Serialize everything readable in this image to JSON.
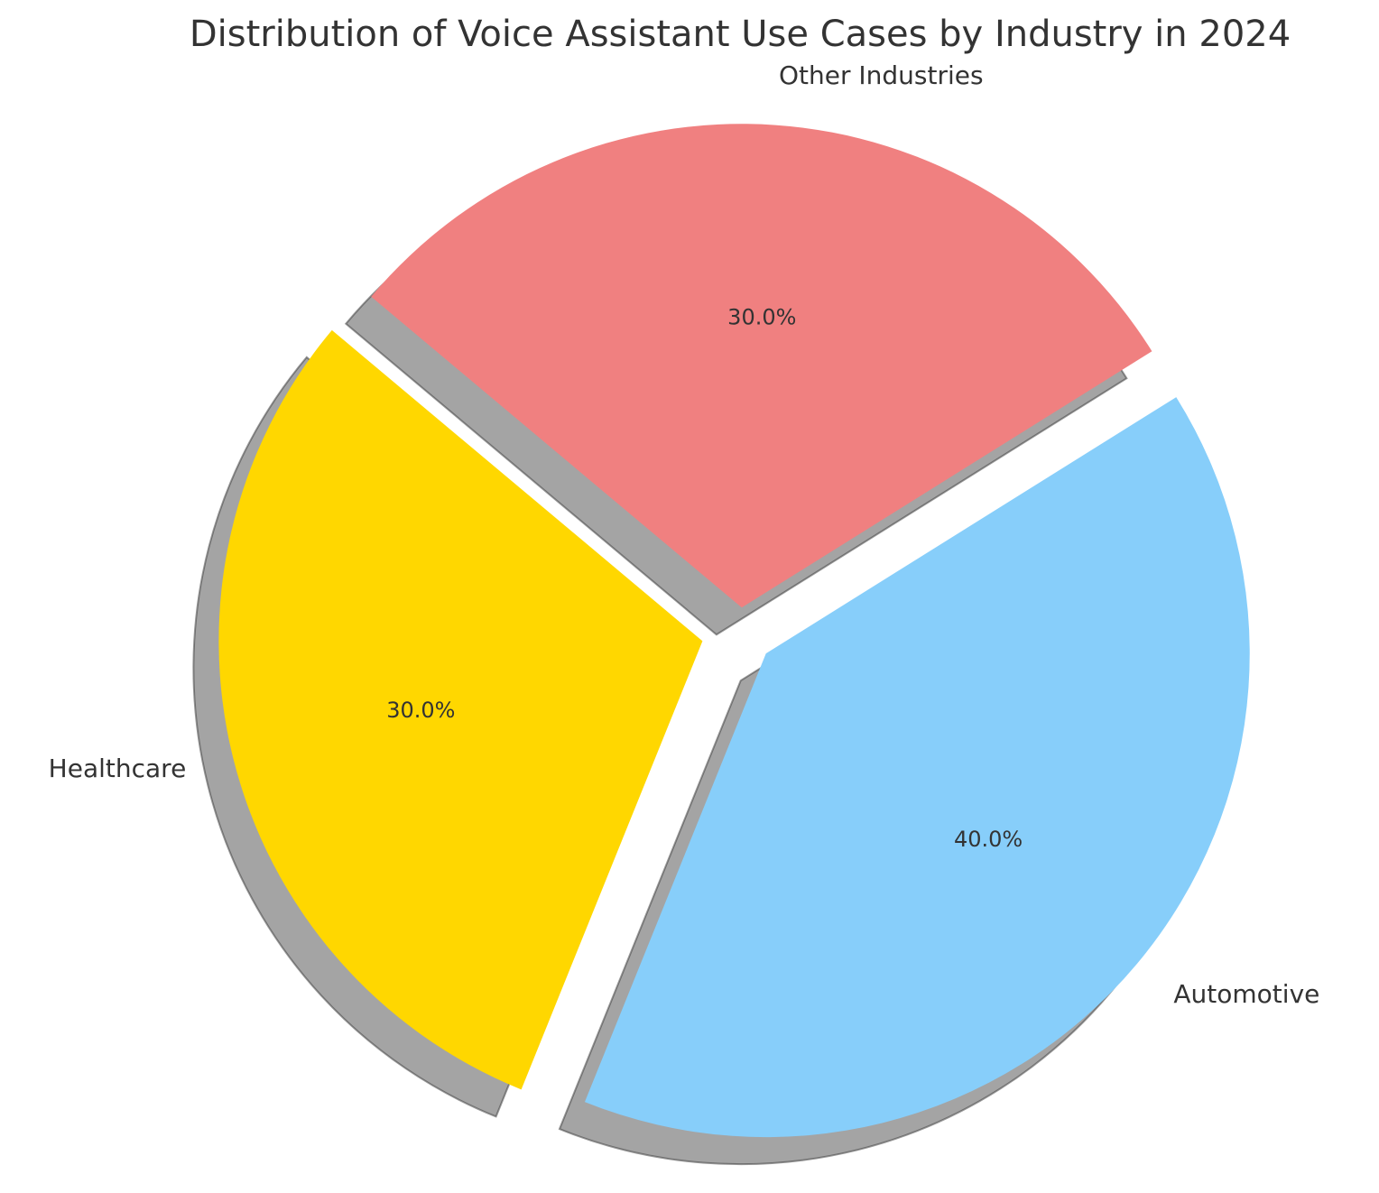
{
  "chart_data": {
    "type": "pie",
    "title": "Distribution of Voice Assistant Use Cases by Industry in 2024",
    "categories": [
      "Other Industries",
      "Healthcare",
      "Automotive"
    ],
    "values": [
      30,
      30,
      40
    ],
    "value_labels": [
      "30.0%",
      "30.0%",
      "40.0%"
    ],
    "colors": [
      "#f08080",
      "#ffd700",
      "#87cefa"
    ],
    "start_angle": 32,
    "explode": [
      0.05,
      0.08,
      0.07
    ],
    "shadow": true
  }
}
